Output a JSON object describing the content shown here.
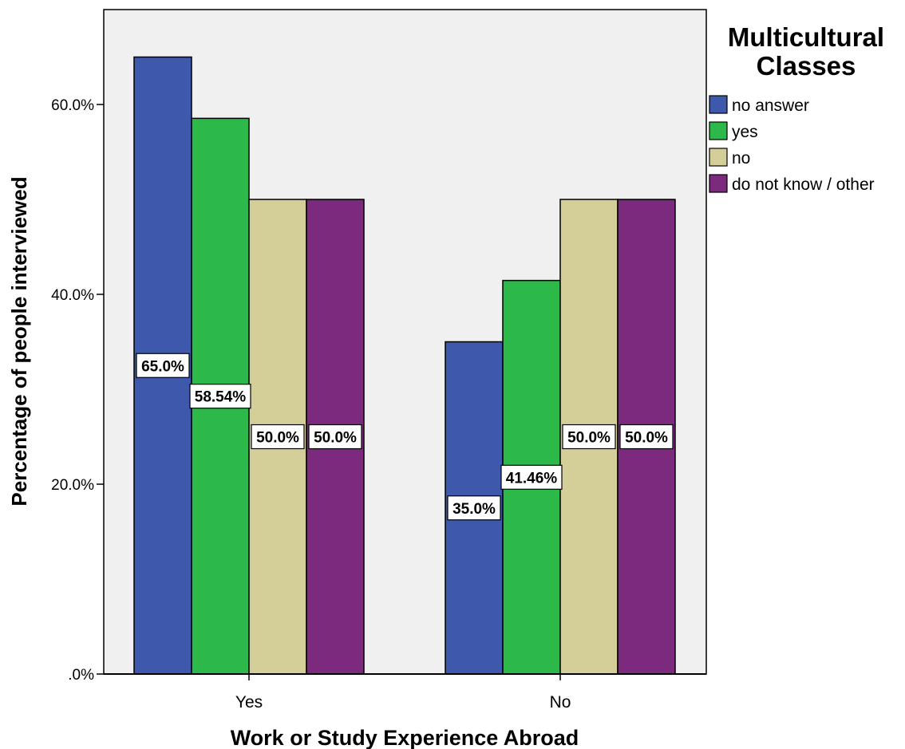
{
  "chart_data": {
    "type": "bar",
    "categories": [
      "Yes",
      "No"
    ],
    "xlabel": "Work or Study Experience Abroad",
    "ylabel": "Percentage of people interviewed",
    "ylim": [
      0,
      70
    ],
    "yticks": [
      0,
      20,
      40,
      60
    ],
    "ytick_labels": [
      ".0%",
      "20.0%",
      "40.0%",
      "60.0%"
    ],
    "grid": false,
    "legend": {
      "title": "Multicultural Classes",
      "placement": "right"
    },
    "series": [
      {
        "name": "no answer",
        "color": "#3e58ac",
        "values": [
          65.0,
          35.0
        ],
        "labels": [
          "65.0%",
          "35.0%"
        ]
      },
      {
        "name": "yes",
        "color": "#2db84a",
        "values": [
          58.54,
          41.46
        ],
        "labels": [
          "58.54%",
          "41.46%"
        ]
      },
      {
        "name": "no",
        "color": "#d4cf98",
        "values": [
          50.0,
          50.0
        ],
        "labels": [
          "50.0%",
          "50.0%"
        ]
      },
      {
        "name": "do not know / other",
        "color": "#7b2a7d",
        "values": [
          50.0,
          50.0
        ],
        "labels": [
          "50.0%",
          "50.0%"
        ]
      }
    ]
  }
}
